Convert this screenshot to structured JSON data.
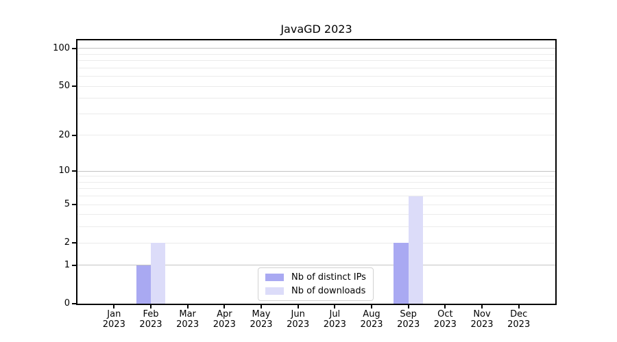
{
  "chart_data": {
    "type": "bar",
    "title": "JavaGD 2023",
    "categories": [
      "Jan",
      "Feb",
      "Mar",
      "Apr",
      "May",
      "Jun",
      "Jul",
      "Aug",
      "Sep",
      "Oct",
      "Nov",
      "Dec"
    ],
    "x_year_label": "2023",
    "series": [
      {
        "name": "Nb of distinct IPs",
        "color": "#a9a9f2",
        "values": [
          0,
          1,
          0,
          0,
          0,
          0,
          0,
          0,
          2,
          0,
          0,
          0
        ]
      },
      {
        "name": "Nb of downloads",
        "color": "#dcdcf9",
        "values": [
          0,
          2,
          0,
          0,
          0,
          0,
          0,
          0,
          6,
          0,
          0,
          0
        ]
      }
    ],
    "y_axis": {
      "scale": "log10(1+x)",
      "tick_values": [
        0,
        1,
        2,
        5,
        10,
        20,
        50,
        100
      ],
      "ylim": [
        0,
        116
      ],
      "major_gridlines": [
        1,
        10,
        100
      ],
      "minor_gridlines": [
        2,
        3,
        4,
        5,
        6,
        7,
        8,
        9,
        20,
        30,
        40,
        50,
        60,
        70,
        80,
        90
      ]
    },
    "legend": {
      "position": "inside-bottom-center",
      "entries": [
        "Nb of distinct IPs",
        "Nb of downloads"
      ]
    },
    "colors": {
      "major_grid": "#c3c3c3",
      "minor_grid": "#ebebeb",
      "axis": "#000000",
      "background": "#ffffff"
    }
  }
}
